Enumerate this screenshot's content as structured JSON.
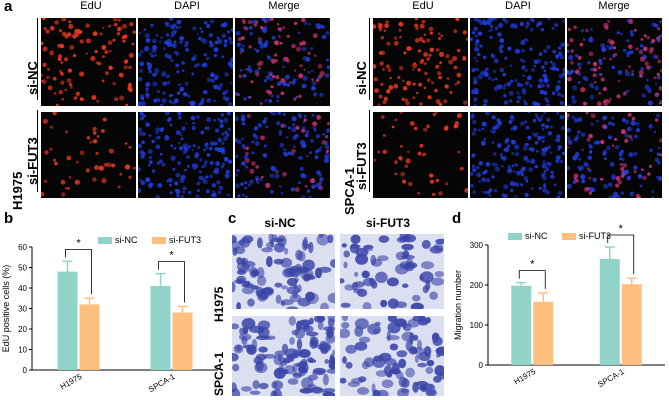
{
  "panel_a": {
    "label": "a",
    "left": {
      "cell": "H1975",
      "columns": [
        "EdU",
        "DAPI",
        "Merge"
      ],
      "rows": [
        "si-NC",
        "si-FUT3"
      ]
    },
    "right": {
      "cell": "SPCA-1",
      "columns": [
        "EdU",
        "DAPI",
        "Merge"
      ],
      "rows": [
        "si-NC",
        "si-FUT3"
      ]
    },
    "colors": {
      "edu": "#e8361e",
      "dapi": "#1e3cd8",
      "merge": "#c0306c"
    }
  },
  "panel_b": {
    "label": "b",
    "ylabel": "EdU positive cells (%)",
    "significance": "*",
    "chart_data": {
      "type": "bar",
      "categories": [
        "H1975",
        "SPCA-1"
      ],
      "ylim": [
        0,
        60
      ],
      "yticks": [
        0,
        10,
        20,
        30,
        40,
        50,
        60
      ],
      "series": [
        {
          "name": "si-NC",
          "color": "#8fd3c9",
          "values": [
            48,
            41
          ],
          "errors": [
            5,
            6
          ]
        },
        {
          "name": "si-FUT3",
          "color": "#fdbf7e",
          "values": [
            32,
            28
          ],
          "errors": [
            3,
            3
          ]
        }
      ]
    }
  },
  "panel_c": {
    "label": "c",
    "columns": [
      "si-NC",
      "si-FUT3"
    ],
    "rows": [
      "H1975",
      "SPCA-1"
    ],
    "stain_color": "#3a45a8"
  },
  "panel_d": {
    "label": "d",
    "ylabel": "Migration number",
    "significance": "*",
    "chart_data": {
      "type": "bar",
      "categories": [
        "H1975",
        "SPCA-1"
      ],
      "ylim": [
        0,
        300
      ],
      "yticks": [
        0,
        100,
        200,
        300
      ],
      "series": [
        {
          "name": "si-NC",
          "color": "#8fd3c9",
          "values": [
            198,
            265
          ],
          "errors": [
            8,
            30
          ]
        },
        {
          "name": "si-FUT3",
          "color": "#fdbf7e",
          "values": [
            158,
            202
          ],
          "errors": [
            22,
            15
          ]
        }
      ]
    }
  }
}
